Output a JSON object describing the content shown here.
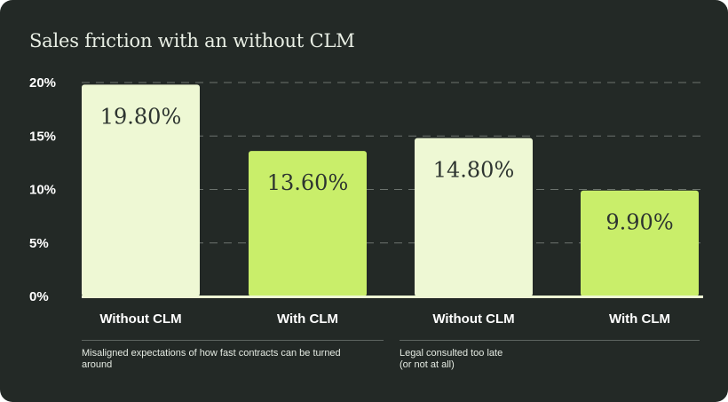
{
  "chart_data": {
    "type": "bar",
    "title": "Sales friction with an without CLM",
    "y_ticks": [
      "0%",
      "5%",
      "10%",
      "15%",
      "20%"
    ],
    "ylim": [
      0,
      20
    ],
    "grid": true,
    "categories": [
      "Without CLM",
      "With CLM",
      "Without CLM",
      "With CLM"
    ],
    "values": [
      19.8,
      13.6,
      14.8,
      9.9
    ],
    "value_labels": [
      "19.80%",
      "13.60%",
      "14.80%",
      "9.90%"
    ],
    "groups": [
      {
        "label": "Misaligned expectations of how fast contracts can be turned\naround"
      },
      {
        "label": "Legal consulted too late\n(or not at all)"
      }
    ],
    "colors": {
      "background": "#232926",
      "without_clm": "#eef8d4",
      "with_clm": "#c9ee6a",
      "baseline": "#eef8d4"
    }
  }
}
